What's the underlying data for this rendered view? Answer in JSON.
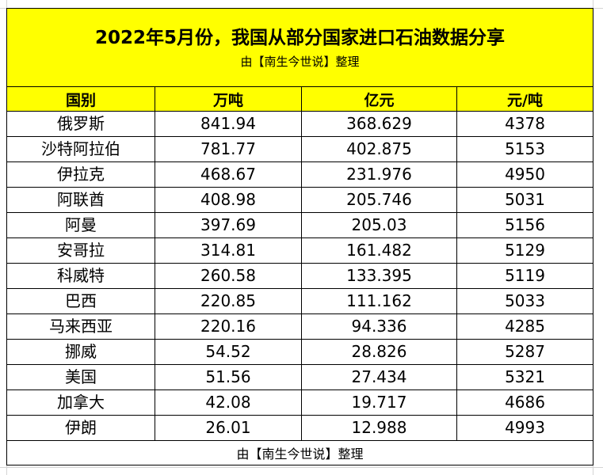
{
  "title": "2022年5月份，我国从部分国家进口石油数据分享",
  "subtitle": "由【南生今世说】整理",
  "headers": [
    "国别",
    "万吨",
    "亿元",
    "元/吨"
  ],
  "rows": [
    {
      "country": "俄罗斯",
      "wan_ton": "841.94",
      "yi_yuan": "368.629",
      "yuan_per_ton": "4378"
    },
    {
      "country": "沙特阿拉伯",
      "wan_ton": "781.77",
      "yi_yuan": "402.875",
      "yuan_per_ton": "5153"
    },
    {
      "country": "伊拉克",
      "wan_ton": "468.67",
      "yi_yuan": "231.976",
      "yuan_per_ton": "4950"
    },
    {
      "country": "阿联酋",
      "wan_ton": "408.98",
      "yi_yuan": "205.746",
      "yuan_per_ton": "5031"
    },
    {
      "country": "阿曼",
      "wan_ton": "397.69",
      "yi_yuan": "205.03",
      "yuan_per_ton": "5156"
    },
    {
      "country": "安哥拉",
      "wan_ton": "314.81",
      "yi_yuan": "161.482",
      "yuan_per_ton": "5129"
    },
    {
      "country": "科威特",
      "wan_ton": "260.58",
      "yi_yuan": "133.395",
      "yuan_per_ton": "5119"
    },
    {
      "country": "巴西",
      "wan_ton": "220.85",
      "yi_yuan": "111.162",
      "yuan_per_ton": "5033"
    },
    {
      "country": "马来西亚",
      "wan_ton": "220.16",
      "yi_yuan": "94.336",
      "yuan_per_ton": "4285"
    },
    {
      "country": "挪威",
      "wan_ton": "54.52",
      "yi_yuan": "28.826",
      "yuan_per_ton": "5287"
    },
    {
      "country": "美国",
      "wan_ton": "51.56",
      "yi_yuan": "27.434",
      "yuan_per_ton": "5321"
    },
    {
      "country": "加拿大",
      "wan_ton": "42.08",
      "yi_yuan": "19.717",
      "yuan_per_ton": "4686"
    },
    {
      "country": "伊朗",
      "wan_ton": "26.01",
      "yi_yuan": "12.988",
      "yuan_per_ton": "4993"
    }
  ],
  "footer": "由【南生今世说】整理",
  "colors": {
    "header_fill": "#ffff00",
    "border": "#000000",
    "gridline": "#d4d4d4"
  }
}
